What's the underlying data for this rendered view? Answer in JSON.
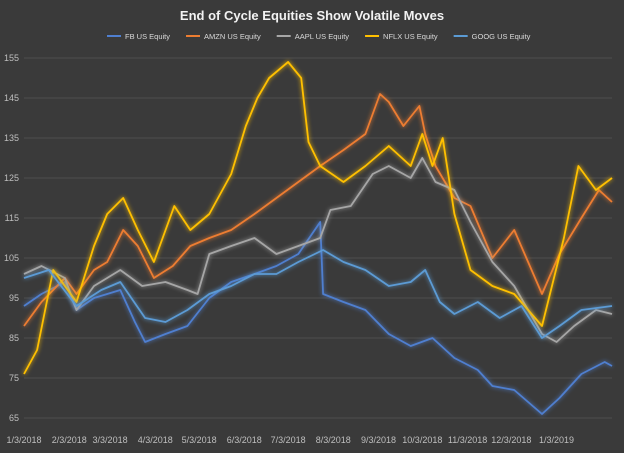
{
  "chart_data": {
    "type": "line",
    "title": "End of Cycle Equities Show Volatile Moves",
    "xlabel": "",
    "ylabel": "",
    "ylim": [
      65,
      155
    ],
    "yticks": [
      65,
      75,
      85,
      95,
      105,
      115,
      125,
      135,
      145,
      155
    ],
    "xlim": [
      "2018-01-03",
      "2019-02-10"
    ],
    "x_tick_labels": [
      "1/3/2018",
      "2/3/2018",
      "3/3/2018",
      "4/3/2018",
      "5/3/2018",
      "6/3/2018",
      "7/3/2018",
      "8/3/2018",
      "9/3/2018",
      "10/3/2018",
      "11/3/2018",
      "12/3/2018",
      "1/3/2019"
    ],
    "x_tick_dates": [
      "2018-01-03",
      "2018-02-03",
      "2018-03-03",
      "2018-04-03",
      "2018-05-03",
      "2018-06-03",
      "2018-07-03",
      "2018-08-03",
      "2018-09-03",
      "2018-10-03",
      "2018-11-03",
      "2018-12-03",
      "2019-01-03"
    ],
    "grid": "horizontal",
    "legend_position": "top",
    "background": "#3a3a3a",
    "series": [
      {
        "name": "FB US Equity",
        "color": "#4f7fd0",
        "points": [
          [
            "2018-01-03",
            93
          ],
          [
            "2018-01-15",
            96
          ],
          [
            "2018-01-31",
            99
          ],
          [
            "2018-02-08",
            92
          ],
          [
            "2018-02-20",
            95
          ],
          [
            "2018-03-10",
            97
          ],
          [
            "2018-03-20",
            89
          ],
          [
            "2018-03-27",
            84
          ],
          [
            "2018-04-10",
            86
          ],
          [
            "2018-04-25",
            88
          ],
          [
            "2018-05-10",
            95
          ],
          [
            "2018-05-25",
            99
          ],
          [
            "2018-06-10",
            101
          ],
          [
            "2018-06-25",
            103
          ],
          [
            "2018-07-10",
            106
          ],
          [
            "2018-07-25",
            114
          ],
          [
            "2018-07-27",
            96
          ],
          [
            "2018-08-10",
            94
          ],
          [
            "2018-08-25",
            92
          ],
          [
            "2018-09-10",
            86
          ],
          [
            "2018-09-25",
            83
          ],
          [
            "2018-10-10",
            85
          ],
          [
            "2018-10-25",
            80
          ],
          [
            "2018-11-10",
            77
          ],
          [
            "2018-11-20",
            73
          ],
          [
            "2018-12-05",
            72
          ],
          [
            "2018-12-24",
            66
          ],
          [
            "2019-01-05",
            70
          ],
          [
            "2019-01-20",
            76
          ],
          [
            "2019-02-05",
            79
          ],
          [
            "2019-02-10",
            78
          ]
        ]
      },
      {
        "name": "AMZN US Equity",
        "color": "#ed7d31",
        "points": [
          [
            "2018-01-03",
            88
          ],
          [
            "2018-01-15",
            94
          ],
          [
            "2018-01-31",
            100
          ],
          [
            "2018-02-08",
            96
          ],
          [
            "2018-02-20",
            102
          ],
          [
            "2018-03-01",
            104
          ],
          [
            "2018-03-12",
            112
          ],
          [
            "2018-03-22",
            108
          ],
          [
            "2018-04-02",
            100
          ],
          [
            "2018-04-15",
            103
          ],
          [
            "2018-04-27",
            108
          ],
          [
            "2018-05-10",
            110
          ],
          [
            "2018-05-25",
            112
          ],
          [
            "2018-06-10",
            116
          ],
          [
            "2018-06-25",
            120
          ],
          [
            "2018-07-10",
            124
          ],
          [
            "2018-07-25",
            128
          ],
          [
            "2018-08-10",
            132
          ],
          [
            "2018-08-25",
            136
          ],
          [
            "2018-09-04",
            146
          ],
          [
            "2018-09-10",
            144
          ],
          [
            "2018-09-20",
            138
          ],
          [
            "2018-10-01",
            143
          ],
          [
            "2018-10-05",
            136
          ],
          [
            "2018-10-12",
            128
          ],
          [
            "2018-10-25",
            120
          ],
          [
            "2018-11-05",
            118
          ],
          [
            "2018-11-20",
            105
          ],
          [
            "2018-12-05",
            112
          ],
          [
            "2018-12-24",
            96
          ],
          [
            "2019-01-05",
            106
          ],
          [
            "2019-01-20",
            115
          ],
          [
            "2019-02-01",
            122
          ],
          [
            "2019-02-10",
            119
          ]
        ]
      },
      {
        "name": "AAPL US Equity",
        "color": "#a6a6a6",
        "points": [
          [
            "2018-01-03",
            101
          ],
          [
            "2018-01-15",
            103
          ],
          [
            "2018-01-31",
            100
          ],
          [
            "2018-02-08",
            92
          ],
          [
            "2018-02-20",
            98
          ],
          [
            "2018-03-10",
            102
          ],
          [
            "2018-03-25",
            98
          ],
          [
            "2018-04-10",
            99
          ],
          [
            "2018-04-25",
            97
          ],
          [
            "2018-05-02",
            96
          ],
          [
            "2018-05-10",
            106
          ],
          [
            "2018-05-25",
            108
          ],
          [
            "2018-06-10",
            110
          ],
          [
            "2018-06-25",
            106
          ],
          [
            "2018-07-10",
            108
          ],
          [
            "2018-07-25",
            110
          ],
          [
            "2018-08-01",
            117
          ],
          [
            "2018-08-15",
            118
          ],
          [
            "2018-08-30",
            126
          ],
          [
            "2018-09-10",
            128
          ],
          [
            "2018-09-25",
            125
          ],
          [
            "2018-10-03",
            130
          ],
          [
            "2018-10-12",
            124
          ],
          [
            "2018-10-25",
            122
          ],
          [
            "2018-11-05",
            114
          ],
          [
            "2018-11-20",
            104
          ],
          [
            "2018-12-05",
            98
          ],
          [
            "2018-12-24",
            86
          ],
          [
            "2019-01-03",
            84
          ],
          [
            "2019-01-15",
            88
          ],
          [
            "2019-01-30",
            92
          ],
          [
            "2019-02-10",
            91
          ]
        ]
      },
      {
        "name": "NFLX US Equity",
        "color": "#ffc000",
        "points": [
          [
            "2018-01-03",
            76
          ],
          [
            "2018-01-12",
            82
          ],
          [
            "2018-01-23",
            102
          ],
          [
            "2018-02-08",
            94
          ],
          [
            "2018-02-20",
            108
          ],
          [
            "2018-03-01",
            116
          ],
          [
            "2018-03-12",
            120
          ],
          [
            "2018-03-22",
            112
          ],
          [
            "2018-04-02",
            104
          ],
          [
            "2018-04-16",
            118
          ],
          [
            "2018-04-27",
            112
          ],
          [
            "2018-05-10",
            116
          ],
          [
            "2018-05-25",
            126
          ],
          [
            "2018-06-04",
            138
          ],
          [
            "2018-06-12",
            145
          ],
          [
            "2018-06-20",
            150
          ],
          [
            "2018-07-03",
            154
          ],
          [
            "2018-07-12",
            150
          ],
          [
            "2018-07-17",
            134
          ],
          [
            "2018-07-25",
            128
          ],
          [
            "2018-08-10",
            124
          ],
          [
            "2018-08-25",
            128
          ],
          [
            "2018-09-10",
            133
          ],
          [
            "2018-09-25",
            128
          ],
          [
            "2018-10-03",
            136
          ],
          [
            "2018-10-10",
            128
          ],
          [
            "2018-10-17",
            135
          ],
          [
            "2018-10-25",
            116
          ],
          [
            "2018-11-05",
            102
          ],
          [
            "2018-11-20",
            98
          ],
          [
            "2018-12-05",
            96
          ],
          [
            "2018-12-24",
            88
          ],
          [
            "2019-01-08",
            110
          ],
          [
            "2019-01-18",
            128
          ],
          [
            "2019-01-30",
            122
          ],
          [
            "2019-02-10",
            125
          ]
        ]
      },
      {
        "name": "GOOG US Equity",
        "color": "#5b9bd5",
        "points": [
          [
            "2018-01-03",
            100
          ],
          [
            "2018-01-20",
            102
          ],
          [
            "2018-02-08",
            93
          ],
          [
            "2018-02-25",
            97
          ],
          [
            "2018-03-10",
            99
          ],
          [
            "2018-03-27",
            90
          ],
          [
            "2018-04-10",
            89
          ],
          [
            "2018-04-25",
            92
          ],
          [
            "2018-05-10",
            96
          ],
          [
            "2018-05-25",
            98
          ],
          [
            "2018-06-10",
            101
          ],
          [
            "2018-06-25",
            101
          ],
          [
            "2018-07-10",
            104
          ],
          [
            "2018-07-27",
            107
          ],
          [
            "2018-08-10",
            104
          ],
          [
            "2018-08-25",
            102
          ],
          [
            "2018-09-10",
            98
          ],
          [
            "2018-09-25",
            99
          ],
          [
            "2018-10-05",
            102
          ],
          [
            "2018-10-15",
            94
          ],
          [
            "2018-10-25",
            91
          ],
          [
            "2018-11-10",
            94
          ],
          [
            "2018-11-25",
            90
          ],
          [
            "2018-12-10",
            93
          ],
          [
            "2018-12-24",
            85
          ],
          [
            "2019-01-05",
            88
          ],
          [
            "2019-01-20",
            92
          ],
          [
            "2019-02-10",
            93
          ]
        ]
      }
    ]
  }
}
